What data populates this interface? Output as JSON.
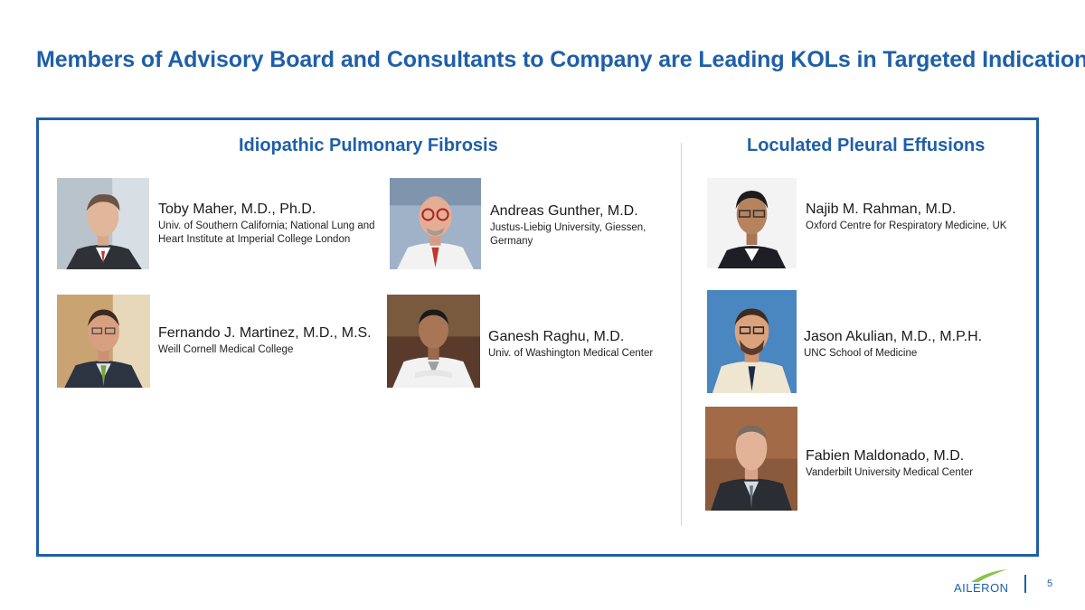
{
  "slide": {
    "title": "Members of Advisory Board and Consultants to Company are Leading KOLs in Targeted Indications",
    "page_number": "5",
    "logo_text": "AILERON"
  },
  "sections": {
    "ipf": {
      "heading": "Idiopathic Pulmonary Fibrosis"
    },
    "lpe": {
      "heading": "Loculated Pleural Effusions"
    }
  },
  "people": [
    {
      "name": "Toby Maher, M.D., Ph.D.",
      "affiliation": "Univ. of Southern California; National Lung and Heart Institute at Imperial College London"
    },
    {
      "name": "Andreas Gunther, M.D.",
      "affiliation": "Justus-Liebig University, Giessen, Germany"
    },
    {
      "name": "Najib M. Rahman, M.D.",
      "affiliation": "Oxford Centre for Respiratory Medicine, UK"
    },
    {
      "name": "Fernando J. Martinez, M.D., M.S.",
      "affiliation": "Weill Cornell Medical College"
    },
    {
      "name": "Ganesh Raghu, M.D.",
      "affiliation": "Univ. of Washington Medical Center"
    },
    {
      "name": "Jason Akulian, M.D., M.P.H.",
      "affiliation": "UNC School of Medicine"
    },
    {
      "name": "Fabien Maldonado, M.D.",
      "affiliation": "Vanderbilt University Medical Center"
    }
  ],
  "colors": {
    "accent": "#1f5fa8",
    "logo_swoosh": "#8bc34a"
  }
}
